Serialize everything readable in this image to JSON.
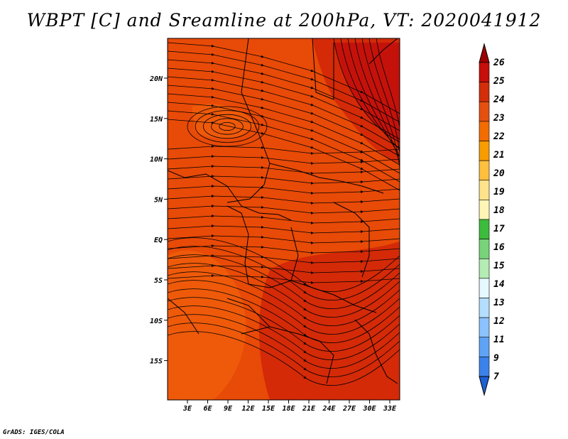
{
  "title": "WBPT [C] and Sreamline at 200hPa, VT: 2020041912",
  "credit": "GrADS: IGES/COLA",
  "map": {
    "lon_labels": [
      "3E",
      "6E",
      "9E",
      "12E",
      "15E",
      "18E",
      "21E",
      "24E",
      "27E",
      "30E",
      "33E"
    ],
    "lat_labels": [
      "20N",
      "15N",
      "10N",
      "5N",
      "EQ",
      "5S",
      "10S",
      "15S"
    ],
    "base_fill": "#e84a07",
    "warm_fill": "#d42a08",
    "hot_fill": "#c4120b",
    "cool_fill": "#ee5a0a"
  },
  "colorbar": {
    "levels": [
      "26",
      "25",
      "24",
      "23",
      "22",
      "21",
      "20",
      "19",
      "18",
      "17",
      "16",
      "15",
      "14",
      "13",
      "12",
      "11",
      "9",
      "7"
    ],
    "colors": [
      "#9e0000",
      "#c60f0b",
      "#d32d0a",
      "#e55010",
      "#f26c00",
      "#f99c00",
      "#ffbf3f",
      "#ffe38a",
      "#fff6b6",
      "#3cbc3c",
      "#78d478",
      "#b4ecb4",
      "#e6f8ff",
      "#b4deff",
      "#8cc2ff",
      "#5fa3f7",
      "#3c82eb",
      "#1e60d4"
    ]
  }
}
